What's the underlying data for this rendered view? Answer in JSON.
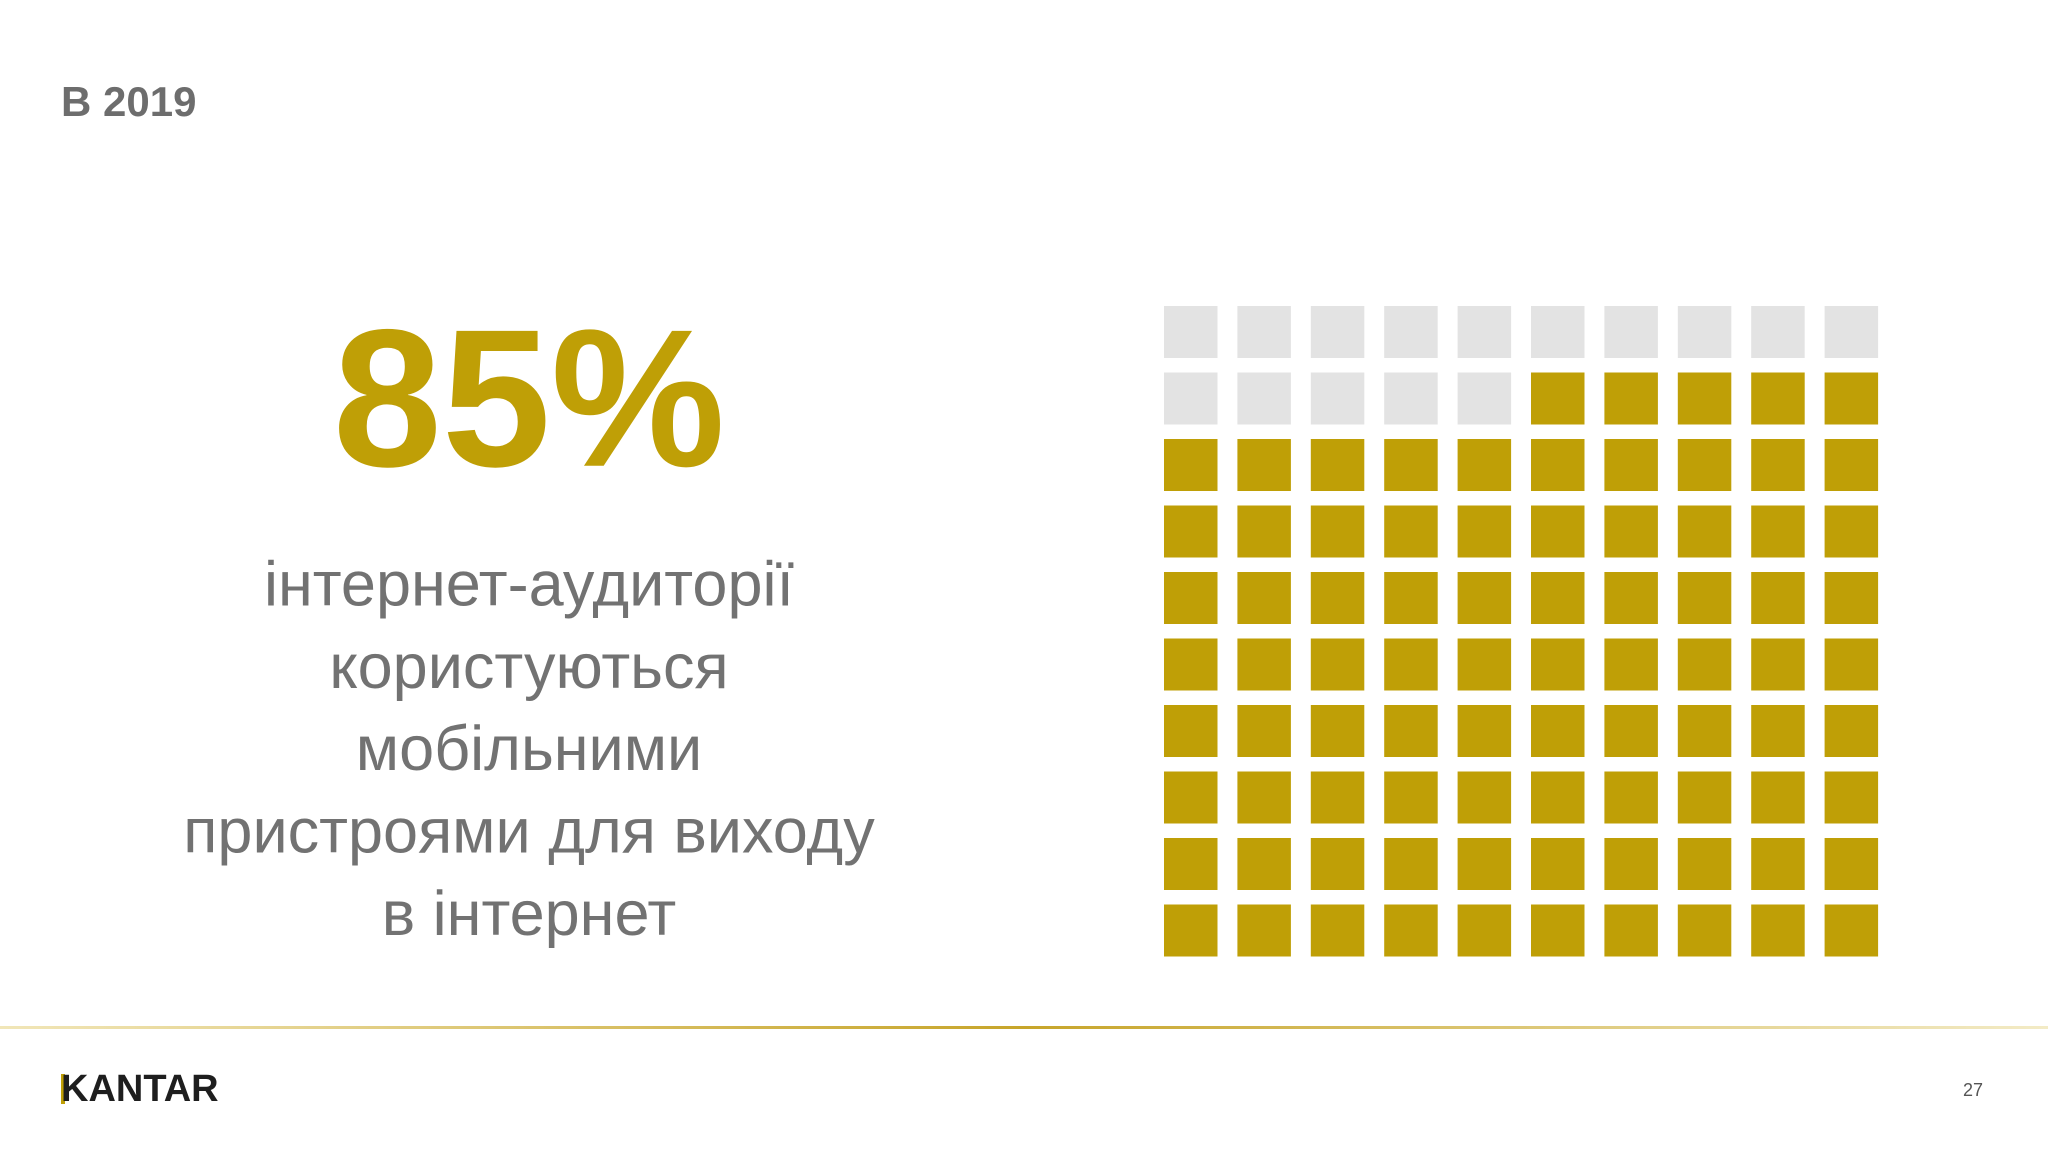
{
  "title": "В 2019",
  "description": [
    "інтернет-аудиторії",
    "користуються",
    "мобільними",
    "пристроями для виходу",
    "в інтернет"
  ],
  "logo": "KANTAR",
  "page_number": "27",
  "chart_data": {
    "type": "waffle",
    "values": [
      85
    ],
    "value_labels": [
      "85%"
    ],
    "color": "#bf9f06",
    "empty_color": "#e3e3e3"
  }
}
